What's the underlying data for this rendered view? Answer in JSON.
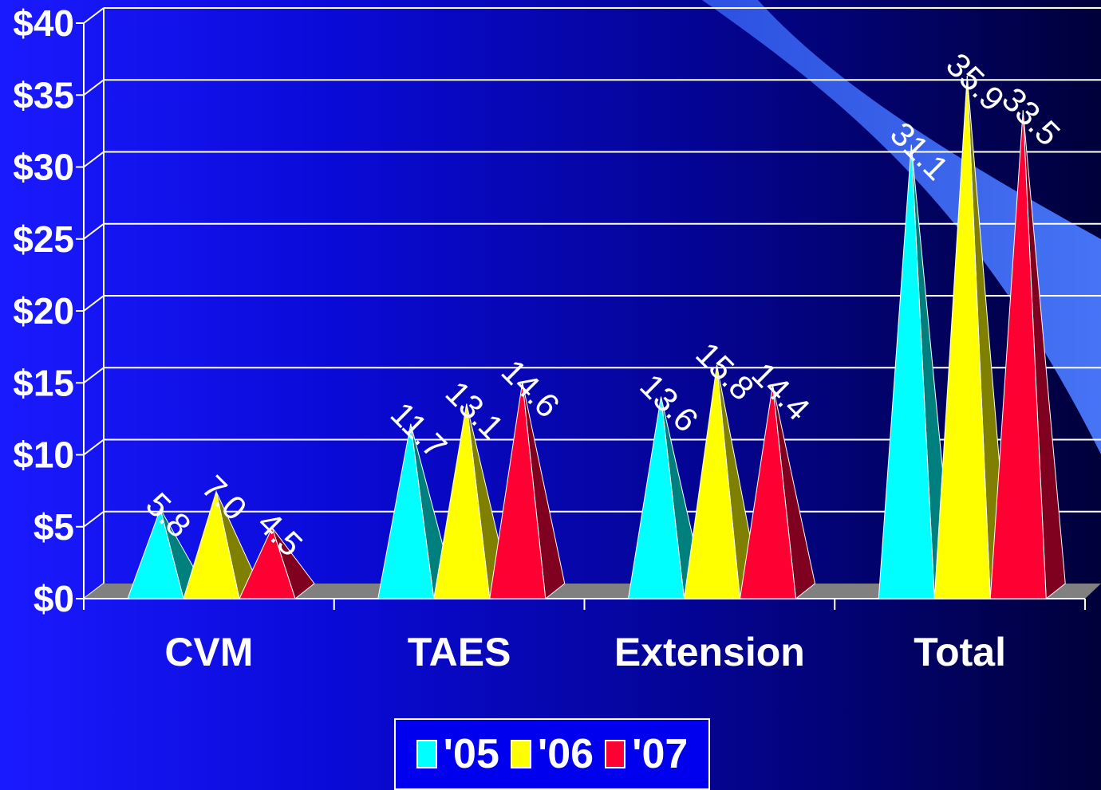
{
  "chart_data": {
    "type": "bar",
    "categories": [
      "CVM",
      "TAES",
      "Extension",
      "Total"
    ],
    "series": [
      {
        "name": "'05",
        "values": [
          5.8,
          11.7,
          13.6,
          31.1
        ]
      },
      {
        "name": "'06",
        "values": [
          7.0,
          13.1,
          15.8,
          35.9
        ]
      },
      {
        "name": "'07",
        "values": [
          4.5,
          14.6,
          14.4,
          33.5
        ]
      }
    ],
    "data_labels": [
      [
        "5.8",
        "11.7",
        "13.6",
        "31.1"
      ],
      [
        "7.0",
        "13.1",
        "15.8",
        "35.9"
      ],
      [
        "4.5",
        "14.6",
        "14.4",
        "33.5"
      ]
    ],
    "ylim": [
      0,
      40
    ],
    "yticks": [
      "$0",
      "$5",
      "$10",
      "$15",
      "$20",
      "$25",
      "$30",
      "$35",
      "$40"
    ],
    "xlabel": "",
    "ylabel": "",
    "grid": true,
    "legend_position": "bottom",
    "bar_shape": "pyramid",
    "colors": {
      "series": [
        "#00ffff",
        "#ffff00",
        "#ff0033"
      ],
      "series_dark": [
        "#007f7f",
        "#7f7f00",
        "#800020"
      ],
      "gridline": "#ffffff",
      "floor": "#808080"
    }
  },
  "legend": {
    "items": [
      {
        "label": "'05",
        "color": "#00ffff"
      },
      {
        "label": "'06",
        "color": "#ffff00"
      },
      {
        "label": "'07",
        "color": "#ff0033"
      }
    ]
  }
}
